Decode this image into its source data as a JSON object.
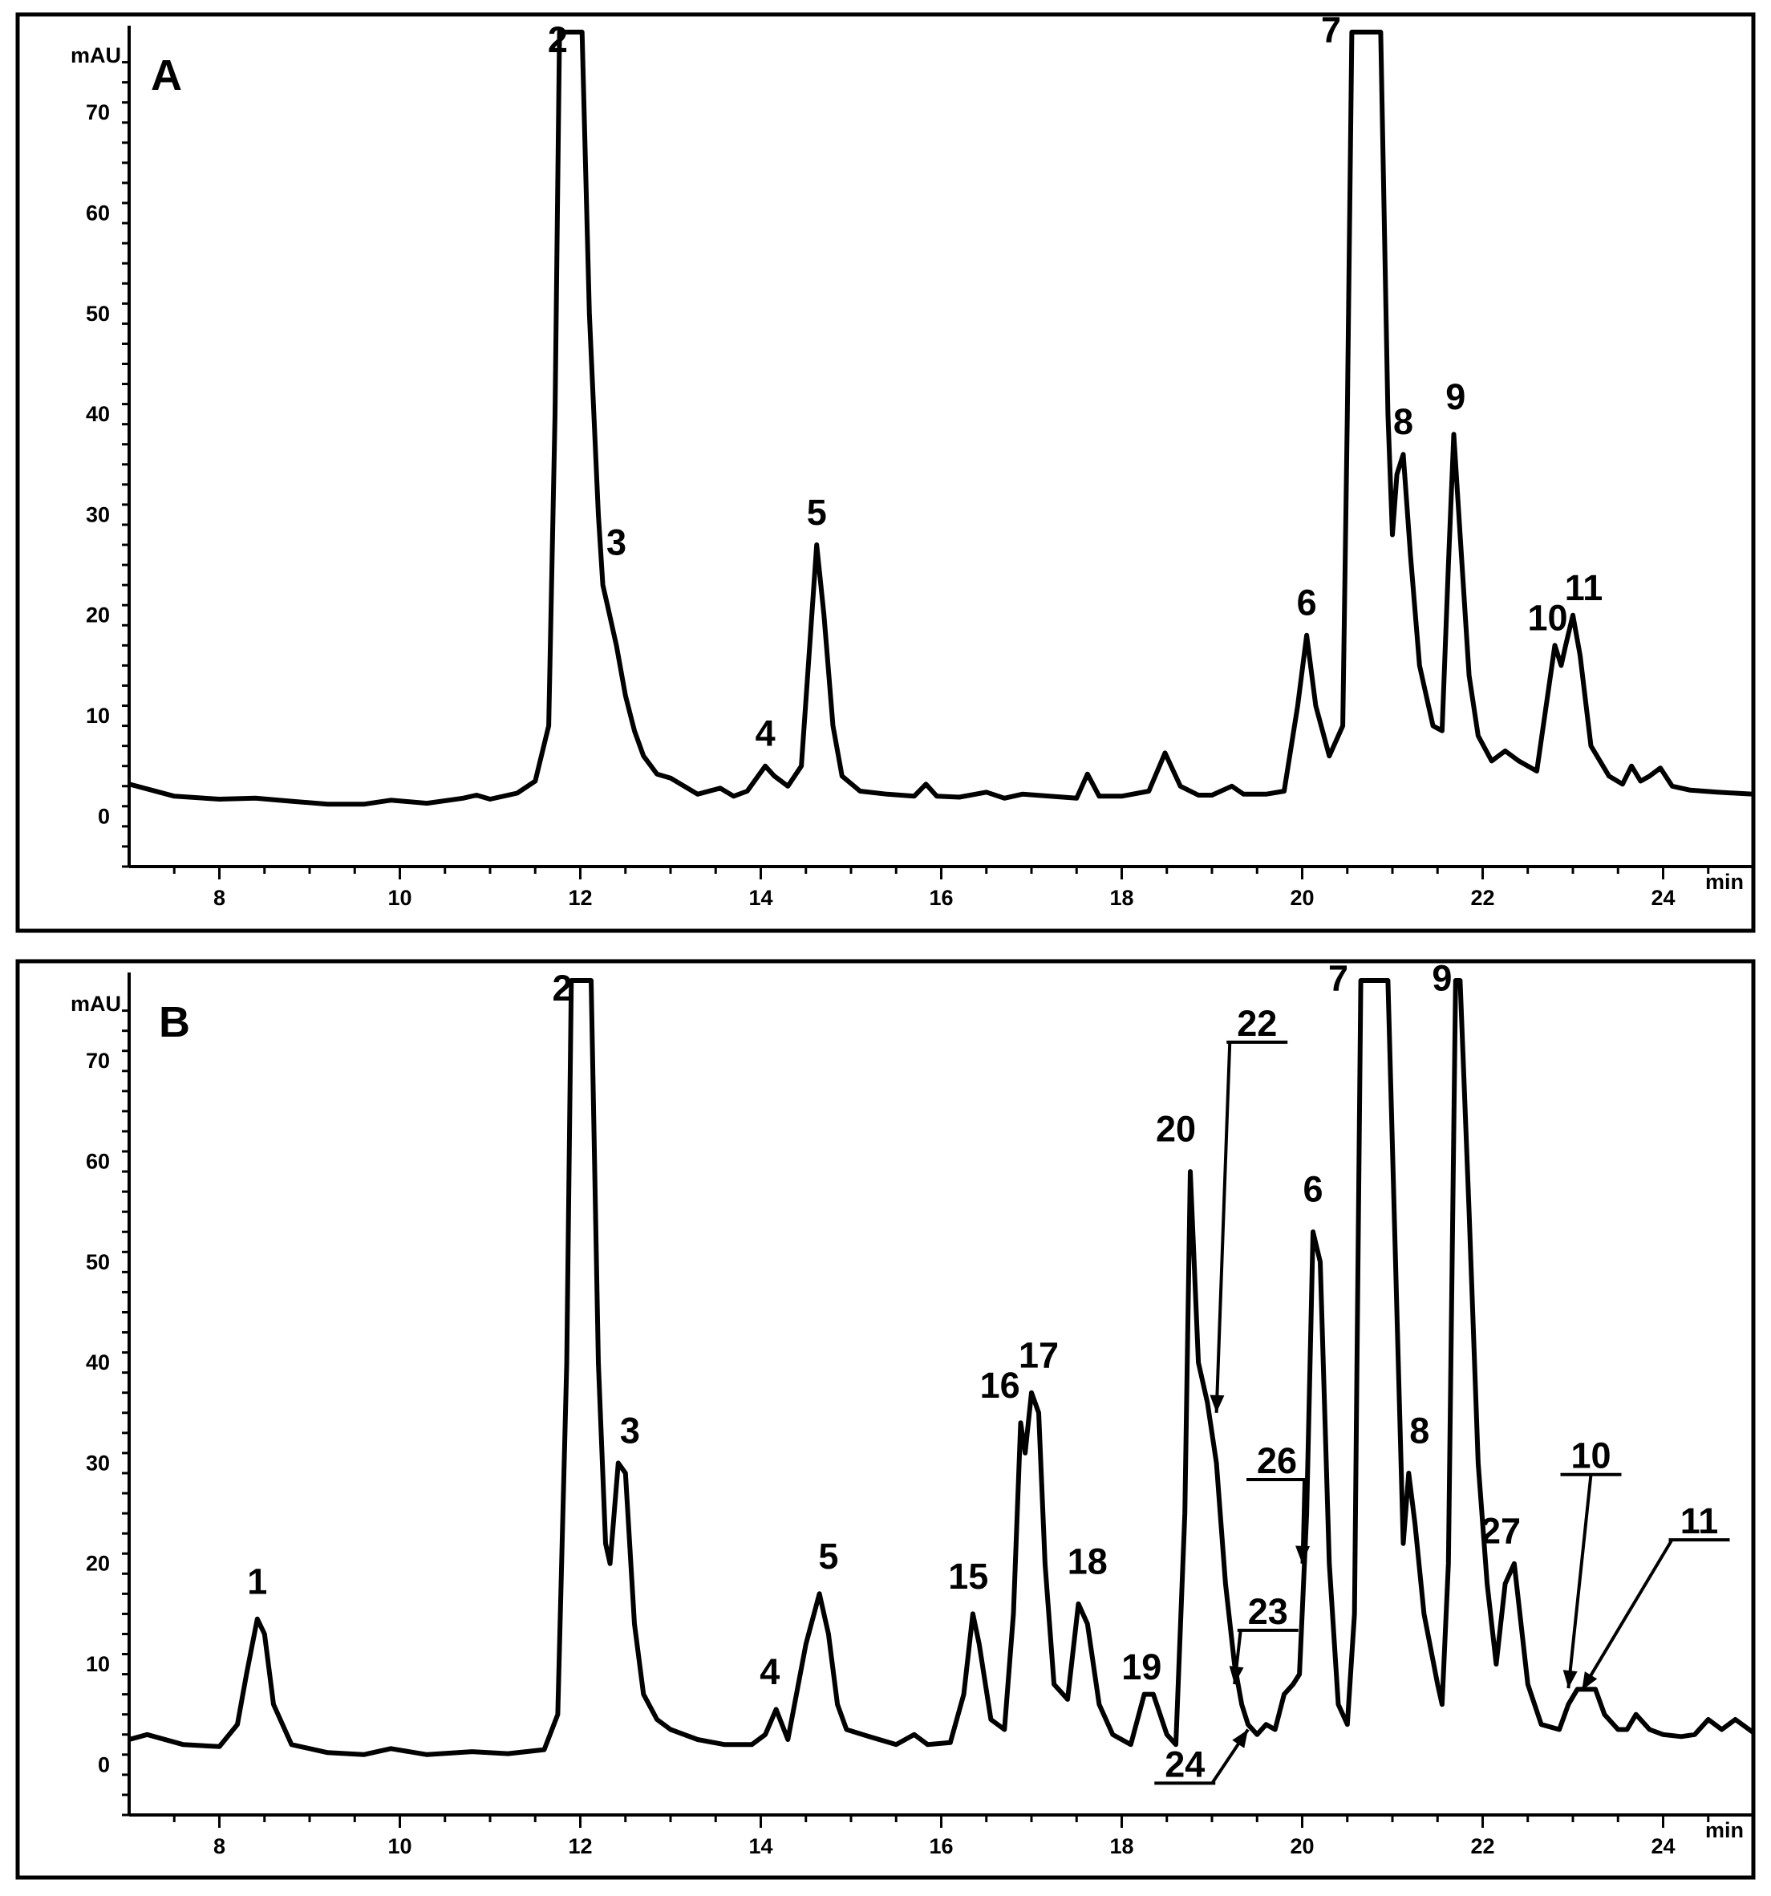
{
  "chart_data": [
    {
      "type": "line",
      "panel": "A",
      "xlabel": "min",
      "ylabel": "mAU",
      "xlim": [
        7,
        25
      ],
      "ylim": [
        -5,
        78
      ],
      "xticks": [
        8,
        10,
        12,
        14,
        16,
        18,
        20,
        22,
        24
      ],
      "yticks": [
        0,
        10,
        20,
        30,
        40,
        50,
        60,
        70
      ],
      "grid": false,
      "series": [
        {
          "x": [
            7.0,
            7.5,
            8.0,
            8.4,
            8.8,
            9.2,
            9.6,
            9.9,
            10.3,
            10.7,
            10.85,
            11.0,
            11.3,
            11.5,
            11.65,
            11.72,
            11.77,
            11.82,
            12.02,
            12.1,
            12.2,
            12.25,
            12.3,
            12.4,
            12.5,
            12.6,
            12.7,
            12.85,
            13.0,
            13.3,
            13.55,
            13.7,
            13.85,
            14.05,
            14.15,
            14.3,
            14.45,
            14.55,
            14.62,
            14.7,
            14.8,
            14.9,
            15.1,
            15.4,
            15.7,
            15.83,
            15.95,
            16.2,
            16.5,
            16.7,
            16.9,
            17.2,
            17.5,
            17.62,
            17.75,
            18.0,
            18.3,
            18.48,
            18.65,
            18.85,
            19.0,
            19.22,
            19.35,
            19.6,
            19.8,
            19.95,
            20.05,
            20.15,
            20.3,
            20.45,
            20.5,
            20.55,
            20.87,
            20.95,
            21.0,
            21.05,
            21.12,
            21.2,
            21.3,
            21.45,
            21.55,
            21.62,
            21.68,
            21.75,
            21.85,
            21.95,
            22.1,
            22.25,
            22.4,
            22.6,
            22.72,
            22.8,
            22.87,
            22.92,
            23.0,
            23.08,
            23.2,
            23.4,
            23.55,
            23.65,
            23.75,
            23.85,
            23.97,
            24.1,
            24.3,
            24.6,
            25.0
          ],
          "y": [
            3.2,
            2.0,
            1.7,
            1.8,
            1.5,
            1.2,
            1.2,
            1.6,
            1.3,
            1.8,
            2.1,
            1.7,
            2.3,
            3.5,
            9.0,
            40.0,
            78.0,
            78.0,
            78.0,
            50.0,
            30.0,
            23.0,
            21.0,
            17.0,
            12.0,
            8.5,
            6.0,
            4.2,
            3.8,
            2.2,
            2.8,
            2.0,
            2.5,
            5.0,
            4.0,
            3.0,
            5.0,
            18.0,
            27.0,
            20.0,
            9.0,
            4.0,
            2.5,
            2.2,
            2.0,
            3.2,
            2.0,
            1.9,
            2.4,
            1.8,
            2.2,
            2.0,
            1.8,
            4.2,
            2.0,
            2.0,
            2.5,
            6.3,
            3.0,
            2.1,
            2.1,
            3.0,
            2.2,
            2.2,
            2.5,
            11.0,
            18.0,
            11.0,
            6.0,
            9.0,
            40.0,
            78.0,
            78.0,
            40.0,
            28.0,
            34.0,
            36.0,
            26.0,
            15.0,
            9.0,
            8.5,
            25.0,
            38.0,
            28.0,
            14.0,
            8.0,
            5.5,
            6.5,
            5.5,
            4.5,
            12.0,
            17.0,
            15.0,
            17.0,
            20.0,
            16.0,
            7.0,
            4.0,
            3.2,
            5.0,
            3.5,
            4.0,
            4.8,
            3.0,
            2.6,
            2.4,
            2.2
          ]
        }
      ],
      "annotations": [
        {
          "label": "2",
          "x": 11.75,
          "y": 76
        },
        {
          "label": "3",
          "x": 12.4,
          "y": 26
        },
        {
          "label": "4",
          "x": 14.05,
          "y": 7
        },
        {
          "label": "5",
          "x": 14.62,
          "y": 29
        },
        {
          "label": "6",
          "x": 20.05,
          "y": 20
        },
        {
          "label": "7",
          "x": 20.32,
          "y": 77
        },
        {
          "label": "8",
          "x": 21.12,
          "y": 38
        },
        {
          "label": "9",
          "x": 21.7,
          "y": 40.5
        },
        {
          "label": "10",
          "x": 22.72,
          "y": 18.5
        },
        {
          "label": "11",
          "x": 23.12,
          "y": 21.5
        }
      ]
    },
    {
      "type": "line",
      "panel": "B",
      "xlabel": "min",
      "ylabel": "mAU",
      "xlim": [
        7,
        25
      ],
      "ylim": [
        -5,
        78
      ],
      "xticks": [
        8,
        10,
        12,
        14,
        16,
        18,
        20,
        22,
        24
      ],
      "yticks": [
        0,
        10,
        20,
        30,
        40,
        50,
        60,
        70
      ],
      "grid": false,
      "series": [
        {
          "x": [
            7.0,
            7.2,
            7.6,
            8.0,
            8.2,
            8.3,
            8.42,
            8.5,
            8.6,
            8.8,
            9.2,
            9.6,
            9.9,
            10.3,
            10.8,
            11.2,
            11.6,
            11.75,
            11.85,
            11.9,
            11.95,
            12.12,
            12.2,
            12.28,
            12.33,
            12.42,
            12.5,
            12.6,
            12.7,
            12.85,
            13.0,
            13.3,
            13.6,
            13.9,
            14.05,
            14.17,
            14.3,
            14.5,
            14.65,
            14.75,
            14.85,
            14.95,
            15.2,
            15.5,
            15.7,
            15.85,
            16.1,
            16.25,
            16.35,
            16.42,
            16.55,
            16.7,
            16.8,
            16.88,
            16.93,
            17.0,
            17.08,
            17.15,
            17.25,
            17.4,
            17.52,
            17.62,
            17.75,
            17.9,
            18.1,
            18.25,
            18.35,
            18.5,
            18.6,
            18.7,
            18.76,
            18.85,
            18.95,
            19.05,
            19.15,
            19.25,
            19.33,
            19.4,
            19.5,
            19.6,
            19.7,
            19.8,
            19.9,
            19.97,
            20.05,
            20.12,
            20.2,
            20.3,
            20.4,
            20.5,
            20.58,
            20.65,
            20.95,
            21.05,
            21.12,
            21.18,
            21.25,
            21.35,
            21.5,
            21.55,
            21.62,
            21.7,
            21.75,
            21.85,
            21.95,
            22.05,
            22.15,
            22.25,
            22.35,
            22.5,
            22.65,
            22.85,
            22.95,
            23.05,
            23.15,
            23.25,
            23.35,
            23.5,
            23.6,
            23.7,
            23.85,
            24.0,
            24.2,
            24.35,
            24.5,
            24.65,
            24.8,
            25.0
          ],
          "y": [
            2.5,
            3.0,
            2.0,
            1.8,
            4.0,
            9.0,
            14.5,
            13.0,
            6.0,
            2.0,
            1.2,
            1.0,
            1.6,
            1.0,
            1.3,
            1.1,
            1.5,
            5.0,
            40.0,
            78.0,
            78.0,
            78.0,
            40.0,
            22.0,
            20.0,
            30.0,
            29.0,
            14.0,
            7.0,
            4.5,
            3.5,
            2.5,
            2.0,
            2.0,
            3.0,
            5.5,
            2.5,
            12.0,
            17.0,
            13.0,
            6.0,
            3.5,
            2.8,
            2.0,
            3.0,
            2.0,
            2.2,
            7.0,
            15.0,
            12.0,
            4.5,
            3.5,
            15.0,
            34.0,
            31.0,
            37.0,
            35.0,
            20.0,
            8.0,
            6.5,
            16.0,
            14.0,
            6.0,
            3.0,
            2.0,
            7.0,
            7.0,
            3.0,
            2.0,
            25.0,
            59.0,
            40.0,
            36.0,
            30.0,
            18.0,
            10.0,
            6.0,
            4.0,
            3.0,
            4.0,
            3.5,
            7.0,
            8.0,
            9.0,
            25.0,
            53.0,
            50.0,
            20.0,
            6.0,
            4.0,
            15.0,
            78.0,
            78.0,
            45.0,
            22.0,
            29.0,
            24.0,
            15.0,
            8.0,
            6.0,
            20.0,
            78.0,
            78.0,
            55.0,
            30.0,
            18.0,
            10.0,
            18.0,
            20.0,
            8.0,
            4.0,
            3.5,
            6.0,
            7.5,
            7.5,
            7.5,
            5.0,
            3.5,
            3.5,
            5.0,
            3.5,
            3.0,
            2.8,
            3.0,
            4.5,
            3.5,
            4.5,
            3.2
          ]
        }
      ],
      "annotations": [
        {
          "label": "1",
          "x": 8.42,
          "y": 17
        },
        {
          "label": "2",
          "x": 11.8,
          "y": 76
        },
        {
          "label": "3",
          "x": 12.55,
          "y": 32
        },
        {
          "label": "4",
          "x": 14.1,
          "y": 8
        },
        {
          "label": "5",
          "x": 14.75,
          "y": 19.5
        },
        {
          "label": "15",
          "x": 16.3,
          "y": 17.5
        },
        {
          "label": "16",
          "x": 16.65,
          "y": 36.5
        },
        {
          "label": "17",
          "x": 17.08,
          "y": 39.5
        },
        {
          "label": "18",
          "x": 17.62,
          "y": 19
        },
        {
          "label": "19",
          "x": 18.22,
          "y": 8.5
        },
        {
          "label": "20",
          "x": 18.6,
          "y": 62
        },
        {
          "label": "6",
          "x": 20.12,
          "y": 56
        },
        {
          "label": "7",
          "x": 20.4,
          "y": 77
        },
        {
          "label": "8",
          "x": 21.3,
          "y": 32
        },
        {
          "label": "9",
          "x": 21.55,
          "y": 77
        },
        {
          "label": "27",
          "x": 22.2,
          "y": 22
        },
        {
          "label": "22",
          "x": 19.5,
          "y": 72.5,
          "underline": true,
          "arrow_to": [
            19.05,
            35
          ]
        },
        {
          "label": "26",
          "x": 19.72,
          "y": 29,
          "underline": true,
          "arrow_to": [
            20.0,
            20
          ]
        },
        {
          "label": "23",
          "x": 19.62,
          "y": 14,
          "underline": true,
          "arrow_to": [
            19.25,
            8
          ]
        },
        {
          "label": "24",
          "x": 18.7,
          "y": -1.2,
          "underline": true,
          "arrow_to": [
            19.4,
            3.5
          ]
        },
        {
          "label": "10",
          "x": 23.2,
          "y": 29.5,
          "underline": true,
          "arrow_to": [
            22.95,
            7.6
          ]
        },
        {
          "label": "11",
          "x": 24.4,
          "y": 23,
          "underline": true,
          "arrow_to": [
            23.1,
            7.4
          ]
        }
      ]
    }
  ]
}
